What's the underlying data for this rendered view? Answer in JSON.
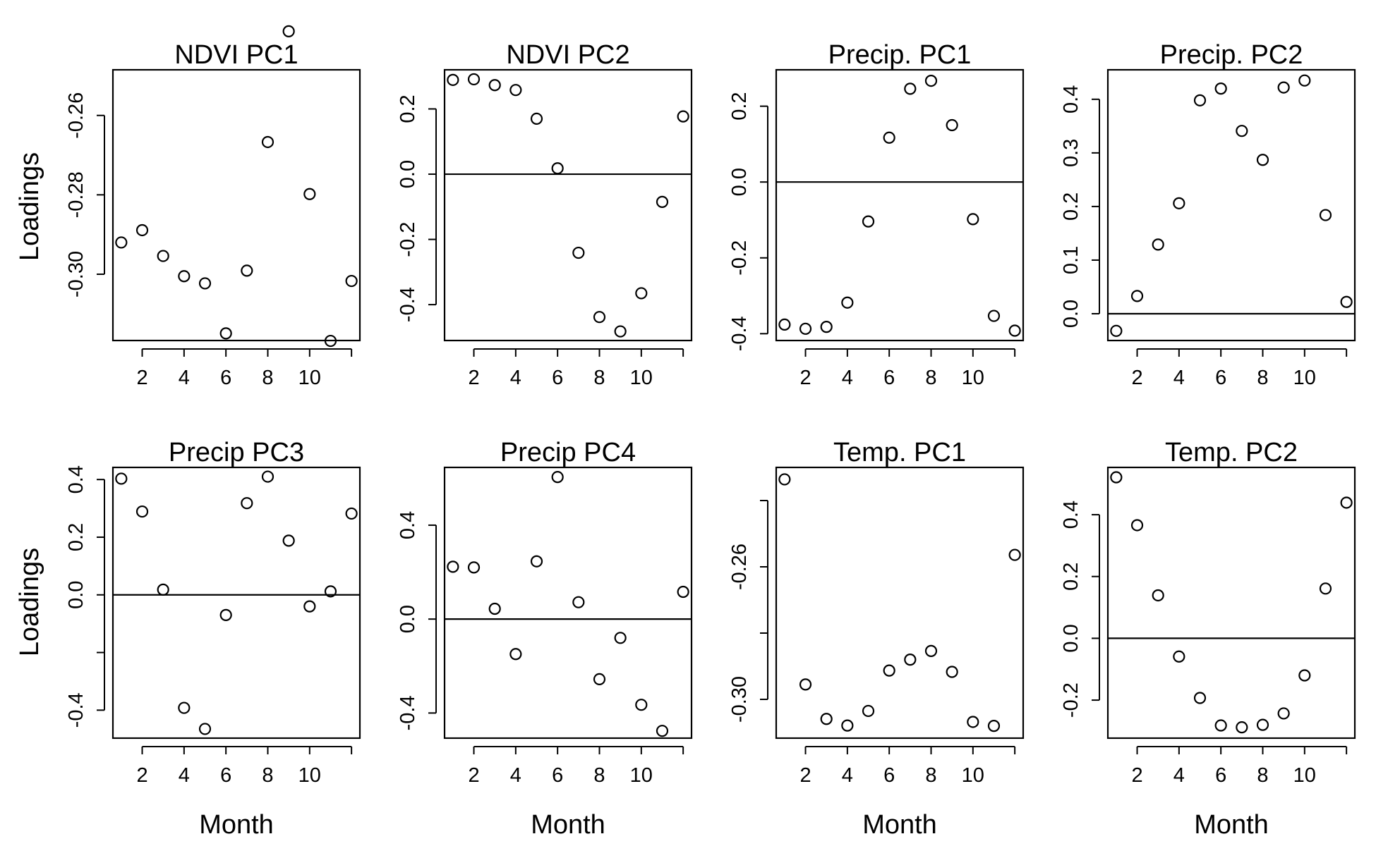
{
  "figure": {
    "ylabel": "Loadings",
    "xlabel": "Month"
  },
  "chart_data": [
    {
      "type": "scatter",
      "title": "NDVI PC1",
      "xlabel": "",
      "ylabel": "Loadings",
      "x": [
        1,
        2,
        3,
        4,
        5,
        6,
        7,
        8,
        9,
        10,
        11,
        12
      ],
      "y": [
        -0.292,
        -0.2889,
        -0.2954,
        -0.3005,
        -0.3023,
        -0.3149,
        -0.2991,
        -0.2667,
        -0.2388,
        -0.2798,
        -0.3168,
        -0.3017
      ],
      "xlim": [
        0.6,
        12.4
      ],
      "ylim": [
        -0.3167,
        -0.2485
      ],
      "x_ticks": [
        2,
        4,
        6,
        8,
        10,
        12
      ],
      "x_tick_labels": [
        "2",
        "4",
        "6",
        "8",
        "10",
        ""
      ],
      "y_ticks": [
        -0.26,
        -0.28,
        -0.3
      ],
      "y_tick_labels": [
        "-0.26",
        "-0.28",
        "-0.30"
      ],
      "hline": null
    },
    {
      "type": "scatter",
      "title": "NDVI PC2",
      "xlabel": "",
      "ylabel": "",
      "x": [
        1,
        2,
        3,
        4,
        5,
        6,
        7,
        8,
        9,
        10,
        11,
        12
      ],
      "y": [
        0.289,
        0.291,
        0.273,
        0.258,
        0.17,
        0.018,
        -0.241,
        -0.438,
        -0.482,
        -0.365,
        -0.085,
        0.177
      ],
      "xlim": [
        0.6,
        12.4
      ],
      "ylim": [
        -0.51,
        0.32
      ],
      "x_ticks": [
        2,
        4,
        6,
        8,
        10,
        12
      ],
      "x_tick_labels": [
        "2",
        "4",
        "6",
        "8",
        "10",
        ""
      ],
      "y_ticks": [
        0.2,
        0.0,
        -0.2,
        -0.4
      ],
      "y_tick_labels": [
        "0.2",
        "0.0",
        "-0.2",
        "-0.4"
      ],
      "hline": 0
    },
    {
      "type": "scatter",
      "title": "Precip. PC1",
      "xlabel": "",
      "ylabel": "",
      "x": [
        1,
        2,
        3,
        4,
        5,
        6,
        7,
        8,
        9,
        10,
        11,
        12
      ],
      "y": [
        -0.376,
        -0.387,
        -0.382,
        -0.318,
        -0.104,
        0.117,
        0.246,
        0.267,
        0.15,
        -0.098,
        -0.353,
        -0.392
      ],
      "xlim": [
        0.6,
        12.4
      ],
      "ylim": [
        -0.418,
        0.296
      ],
      "x_ticks": [
        2,
        4,
        6,
        8,
        10,
        12
      ],
      "x_tick_labels": [
        "2",
        "4",
        "6",
        "8",
        "10",
        ""
      ],
      "y_ticks": [
        0.2,
        0.0,
        -0.2,
        -0.4
      ],
      "y_tick_labels": [
        "0.2",
        "0.0",
        "-0.2",
        "-0.4"
      ],
      "hline": 0
    },
    {
      "type": "scatter",
      "title": "Precip. PC2",
      "xlabel": "",
      "ylabel": "",
      "x": [
        1,
        2,
        3,
        4,
        5,
        6,
        7,
        8,
        9,
        10,
        11,
        12
      ],
      "y": [
        -0.032,
        0.033,
        0.129,
        0.206,
        0.398,
        0.42,
        0.341,
        0.287,
        0.422,
        0.435,
        0.184,
        0.022
      ],
      "xlim": [
        0.6,
        12.4
      ],
      "ylim": [
        -0.05,
        0.455
      ],
      "x_ticks": [
        2,
        4,
        6,
        8,
        10,
        12
      ],
      "x_tick_labels": [
        "2",
        "4",
        "6",
        "8",
        "10",
        ""
      ],
      "y_ticks": [
        0.4,
        0.3,
        0.2,
        0.1,
        0.0
      ],
      "y_tick_labels": [
        "0.4",
        "0.3",
        "0.2",
        "0.1",
        "0.0"
      ],
      "hline": 0
    },
    {
      "type": "scatter",
      "title": "Precip PC3",
      "xlabel": "Month",
      "ylabel": "Loadings",
      "x": [
        1,
        2,
        3,
        4,
        5,
        6,
        7,
        8,
        9,
        10,
        11,
        12
      ],
      "y": [
        0.403,
        0.289,
        0.018,
        -0.392,
        -0.465,
        -0.07,
        0.318,
        0.41,
        0.188,
        -0.04,
        0.012,
        0.282
      ],
      "xlim": [
        0.6,
        12.4
      ],
      "ylim": [
        -0.497,
        0.442
      ],
      "x_ticks": [
        2,
        4,
        6,
        8,
        10,
        12
      ],
      "x_tick_labels": [
        "2",
        "4",
        "6",
        "8",
        "10",
        ""
      ],
      "y_ticks": [
        0.4,
        0.2,
        0.0,
        -0.2,
        -0.4
      ],
      "y_tick_labels": [
        "0.4",
        "0.2",
        "0.0",
        "",
        "-0.4"
      ],
      "hline": 0
    },
    {
      "type": "scatter",
      "title": "Precip PC4",
      "xlabel": "Month",
      "ylabel": "",
      "x": [
        1,
        2,
        3,
        4,
        5,
        6,
        7,
        8,
        9,
        10,
        11,
        12
      ],
      "y": [
        0.223,
        0.22,
        0.044,
        -0.149,
        0.246,
        0.605,
        0.072,
        -0.256,
        -0.08,
        -0.365,
        -0.476,
        0.116
      ],
      "xlim": [
        0.6,
        12.4
      ],
      "ylim": [
        -0.507,
        0.646
      ],
      "x_ticks": [
        2,
        4,
        6,
        8,
        10,
        12
      ],
      "x_tick_labels": [
        "2",
        "4",
        "6",
        "8",
        "10",
        ""
      ],
      "y_ticks": [
        0.4,
        0.0,
        -0.4
      ],
      "y_tick_labels": [
        "0.4",
        "0.0",
        "-0.4"
      ],
      "hline": 0
    },
    {
      "type": "scatter",
      "title": "Temp. PC1",
      "xlabel": "Month",
      "ylabel": "",
      "x": [
        1,
        2,
        3,
        4,
        5,
        6,
        7,
        8,
        9,
        10,
        11,
        12
      ],
      "y": [
        -0.2336,
        -0.2955,
        -0.3059,
        -0.3079,
        -0.3035,
        -0.2913,
        -0.288,
        -0.2854,
        -0.2917,
        -0.3068,
        -0.308,
        -0.2564
      ],
      "xlim": [
        0.6,
        12.4
      ],
      "ylim": [
        -0.3117,
        -0.23
      ],
      "x_ticks": [
        2,
        4,
        6,
        8,
        10,
        12
      ],
      "x_tick_labels": [
        "2",
        "4",
        "6",
        "8",
        "10",
        ""
      ],
      "y_ticks": [
        -0.24,
        -0.26,
        -0.28,
        -0.3
      ],
      "y_tick_labels": [
        "",
        "-0.26",
        "",
        "-0.30"
      ],
      "hline": null
    },
    {
      "type": "scatter",
      "title": "Temp. PC2",
      "xlabel": "Month",
      "ylabel": "",
      "x": [
        1,
        2,
        3,
        4,
        5,
        6,
        7,
        8,
        9,
        10,
        11,
        12
      ],
      "y": [
        0.521,
        0.366,
        0.139,
        -0.059,
        -0.193,
        -0.282,
        -0.288,
        -0.28,
        -0.243,
        -0.12,
        0.161,
        0.439
      ],
      "xlim": [
        0.6,
        12.4
      ],
      "ylim": [
        -0.323,
        0.553
      ],
      "x_ticks": [
        2,
        4,
        6,
        8,
        10,
        12
      ],
      "x_tick_labels": [
        "2",
        "4",
        "6",
        "8",
        "10",
        ""
      ],
      "y_ticks": [
        0.4,
        0.2,
        0.0,
        -0.2
      ],
      "y_tick_labels": [
        "0.4",
        "0.2",
        "0.0",
        "-0.2"
      ],
      "hline": 0
    }
  ]
}
